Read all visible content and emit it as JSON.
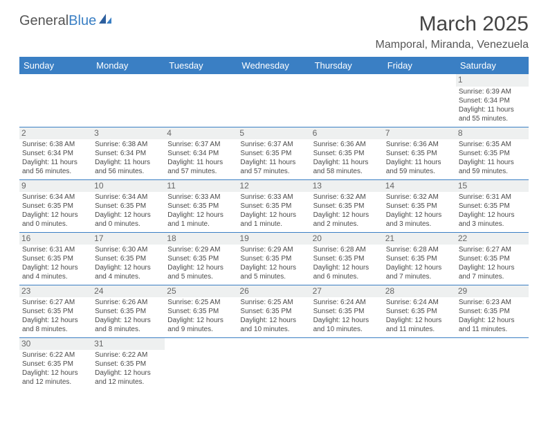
{
  "logo": {
    "textA": "General",
    "textB": "Blue"
  },
  "title": "March 2025",
  "location": "Mamporal, Miranda, Venezuela",
  "day_headers": [
    "Sunday",
    "Monday",
    "Tuesday",
    "Wednesday",
    "Thursday",
    "Friday",
    "Saturday"
  ],
  "colors": {
    "header_bg": "#3a7fc4",
    "header_fg": "#ffffff",
    "row_border": "#3a7fc4",
    "daynum_bg": "#eef0f0"
  },
  "weeks": [
    [
      null,
      null,
      null,
      null,
      null,
      null,
      {
        "n": "1",
        "sunrise": "Sunrise: 6:39 AM",
        "sunset": "Sunset: 6:34 PM",
        "day1": "Daylight: 11 hours",
        "day2": "and 55 minutes."
      }
    ],
    [
      {
        "n": "2",
        "sunrise": "Sunrise: 6:38 AM",
        "sunset": "Sunset: 6:34 PM",
        "day1": "Daylight: 11 hours",
        "day2": "and 56 minutes."
      },
      {
        "n": "3",
        "sunrise": "Sunrise: 6:38 AM",
        "sunset": "Sunset: 6:34 PM",
        "day1": "Daylight: 11 hours",
        "day2": "and 56 minutes."
      },
      {
        "n": "4",
        "sunrise": "Sunrise: 6:37 AM",
        "sunset": "Sunset: 6:34 PM",
        "day1": "Daylight: 11 hours",
        "day2": "and 57 minutes."
      },
      {
        "n": "5",
        "sunrise": "Sunrise: 6:37 AM",
        "sunset": "Sunset: 6:35 PM",
        "day1": "Daylight: 11 hours",
        "day2": "and 57 minutes."
      },
      {
        "n": "6",
        "sunrise": "Sunrise: 6:36 AM",
        "sunset": "Sunset: 6:35 PM",
        "day1": "Daylight: 11 hours",
        "day2": "and 58 minutes."
      },
      {
        "n": "7",
        "sunrise": "Sunrise: 6:36 AM",
        "sunset": "Sunset: 6:35 PM",
        "day1": "Daylight: 11 hours",
        "day2": "and 59 minutes."
      },
      {
        "n": "8",
        "sunrise": "Sunrise: 6:35 AM",
        "sunset": "Sunset: 6:35 PM",
        "day1": "Daylight: 11 hours",
        "day2": "and 59 minutes."
      }
    ],
    [
      {
        "n": "9",
        "sunrise": "Sunrise: 6:34 AM",
        "sunset": "Sunset: 6:35 PM",
        "day1": "Daylight: 12 hours",
        "day2": "and 0 minutes."
      },
      {
        "n": "10",
        "sunrise": "Sunrise: 6:34 AM",
        "sunset": "Sunset: 6:35 PM",
        "day1": "Daylight: 12 hours",
        "day2": "and 0 minutes."
      },
      {
        "n": "11",
        "sunrise": "Sunrise: 6:33 AM",
        "sunset": "Sunset: 6:35 PM",
        "day1": "Daylight: 12 hours",
        "day2": "and 1 minute."
      },
      {
        "n": "12",
        "sunrise": "Sunrise: 6:33 AM",
        "sunset": "Sunset: 6:35 PM",
        "day1": "Daylight: 12 hours",
        "day2": "and 1 minute."
      },
      {
        "n": "13",
        "sunrise": "Sunrise: 6:32 AM",
        "sunset": "Sunset: 6:35 PM",
        "day1": "Daylight: 12 hours",
        "day2": "and 2 minutes."
      },
      {
        "n": "14",
        "sunrise": "Sunrise: 6:32 AM",
        "sunset": "Sunset: 6:35 PM",
        "day1": "Daylight: 12 hours",
        "day2": "and 3 minutes."
      },
      {
        "n": "15",
        "sunrise": "Sunrise: 6:31 AM",
        "sunset": "Sunset: 6:35 PM",
        "day1": "Daylight: 12 hours",
        "day2": "and 3 minutes."
      }
    ],
    [
      {
        "n": "16",
        "sunrise": "Sunrise: 6:31 AM",
        "sunset": "Sunset: 6:35 PM",
        "day1": "Daylight: 12 hours",
        "day2": "and 4 minutes."
      },
      {
        "n": "17",
        "sunrise": "Sunrise: 6:30 AM",
        "sunset": "Sunset: 6:35 PM",
        "day1": "Daylight: 12 hours",
        "day2": "and 4 minutes."
      },
      {
        "n": "18",
        "sunrise": "Sunrise: 6:29 AM",
        "sunset": "Sunset: 6:35 PM",
        "day1": "Daylight: 12 hours",
        "day2": "and 5 minutes."
      },
      {
        "n": "19",
        "sunrise": "Sunrise: 6:29 AM",
        "sunset": "Sunset: 6:35 PM",
        "day1": "Daylight: 12 hours",
        "day2": "and 5 minutes."
      },
      {
        "n": "20",
        "sunrise": "Sunrise: 6:28 AM",
        "sunset": "Sunset: 6:35 PM",
        "day1": "Daylight: 12 hours",
        "day2": "and 6 minutes."
      },
      {
        "n": "21",
        "sunrise": "Sunrise: 6:28 AM",
        "sunset": "Sunset: 6:35 PM",
        "day1": "Daylight: 12 hours",
        "day2": "and 7 minutes."
      },
      {
        "n": "22",
        "sunrise": "Sunrise: 6:27 AM",
        "sunset": "Sunset: 6:35 PM",
        "day1": "Daylight: 12 hours",
        "day2": "and 7 minutes."
      }
    ],
    [
      {
        "n": "23",
        "sunrise": "Sunrise: 6:27 AM",
        "sunset": "Sunset: 6:35 PM",
        "day1": "Daylight: 12 hours",
        "day2": "and 8 minutes."
      },
      {
        "n": "24",
        "sunrise": "Sunrise: 6:26 AM",
        "sunset": "Sunset: 6:35 PM",
        "day1": "Daylight: 12 hours",
        "day2": "and 8 minutes."
      },
      {
        "n": "25",
        "sunrise": "Sunrise: 6:25 AM",
        "sunset": "Sunset: 6:35 PM",
        "day1": "Daylight: 12 hours",
        "day2": "and 9 minutes."
      },
      {
        "n": "26",
        "sunrise": "Sunrise: 6:25 AM",
        "sunset": "Sunset: 6:35 PM",
        "day1": "Daylight: 12 hours",
        "day2": "and 10 minutes."
      },
      {
        "n": "27",
        "sunrise": "Sunrise: 6:24 AM",
        "sunset": "Sunset: 6:35 PM",
        "day1": "Daylight: 12 hours",
        "day2": "and 10 minutes."
      },
      {
        "n": "28",
        "sunrise": "Sunrise: 6:24 AM",
        "sunset": "Sunset: 6:35 PM",
        "day1": "Daylight: 12 hours",
        "day2": "and 11 minutes."
      },
      {
        "n": "29",
        "sunrise": "Sunrise: 6:23 AM",
        "sunset": "Sunset: 6:35 PM",
        "day1": "Daylight: 12 hours",
        "day2": "and 11 minutes."
      }
    ],
    [
      {
        "n": "30",
        "sunrise": "Sunrise: 6:22 AM",
        "sunset": "Sunset: 6:35 PM",
        "day1": "Daylight: 12 hours",
        "day2": "and 12 minutes."
      },
      {
        "n": "31",
        "sunrise": "Sunrise: 6:22 AM",
        "sunset": "Sunset: 6:35 PM",
        "day1": "Daylight: 12 hours",
        "day2": "and 12 minutes."
      },
      null,
      null,
      null,
      null,
      null
    ]
  ]
}
